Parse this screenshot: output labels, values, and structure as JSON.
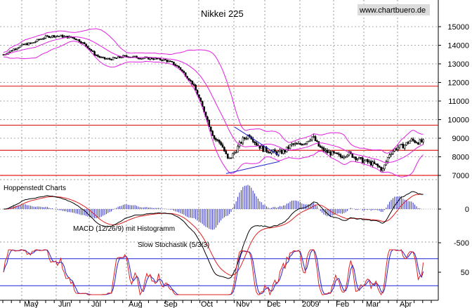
{
  "chart_data": [
    {
      "type": "line",
      "panel": "price",
      "title": "Nikkei 225",
      "watermark": "www.chartbuero.de",
      "y_ticks": [
        15000,
        14000,
        13000,
        12000,
        11000,
        10000,
        9000,
        8000,
        7000
      ],
      "ylim": [
        6500,
        15600
      ],
      "x_month_labels": [
        "May",
        "Jun",
        "Jul",
        "Aug",
        "Sep",
        "Oct",
        "Nov",
        "Dec",
        "2009",
        "Feb",
        "Mar",
        "Apr"
      ],
      "horizontal_levels": [
        11800,
        9700,
        8350,
        7000
      ],
      "series": [
        {
          "x": [
            0,
            10,
            20,
            30,
            40,
            50,
            60,
            70,
            80,
            90,
            100,
            110,
            120,
            130,
            140,
            150,
            160,
            170,
            180,
            190,
            200,
            210,
            220,
            230,
            240,
            250,
            260,
            270,
            280,
            290,
            300,
            310,
            320,
            330,
            340,
            350,
            360,
            370,
            380,
            390,
            400,
            410,
            420,
            430,
            440,
            450,
            460,
            470,
            480,
            490,
            500,
            510,
            520,
            530,
            540,
            550,
            560,
            570,
            580,
            590,
            598
          ],
          "values": [
            13500,
            13700,
            13900,
            14050,
            14100,
            14300,
            14450,
            14500,
            14500,
            14450,
            14400,
            14200,
            13900,
            13500,
            13300,
            13250,
            13300,
            13400,
            13400,
            13350,
            13300,
            13300,
            13250,
            13200,
            13050,
            12800,
            12350,
            11900,
            11000,
            10000,
            9000,
            8700,
            7800,
            8300,
            8900,
            9200,
            8700,
            8400,
            8300,
            8200,
            8300,
            8650,
            8650,
            8800,
            9100,
            8500,
            8250,
            8150,
            8000,
            8200,
            8000,
            7800,
            7700,
            7550,
            7300,
            8200,
            8500,
            8600,
            8900,
            8800,
            8800
          ]
        }
      ],
      "annotations": [
        "Hoppenstedt Charts"
      ]
    },
    {
      "type": "line",
      "panel": "macd",
      "title": "MACD (12/26/9) mit Histogramm",
      "y_ticks": [
        0,
        -500
      ],
      "ylim": [
        -800,
        300
      ]
    },
    {
      "type": "line",
      "panel": "stochastic",
      "title": "Slow Stochastik (5/3/3)",
      "y_ticks": [
        50
      ],
      "ylim": [
        0,
        100
      ],
      "levels": [
        80,
        20
      ]
    }
  ]
}
